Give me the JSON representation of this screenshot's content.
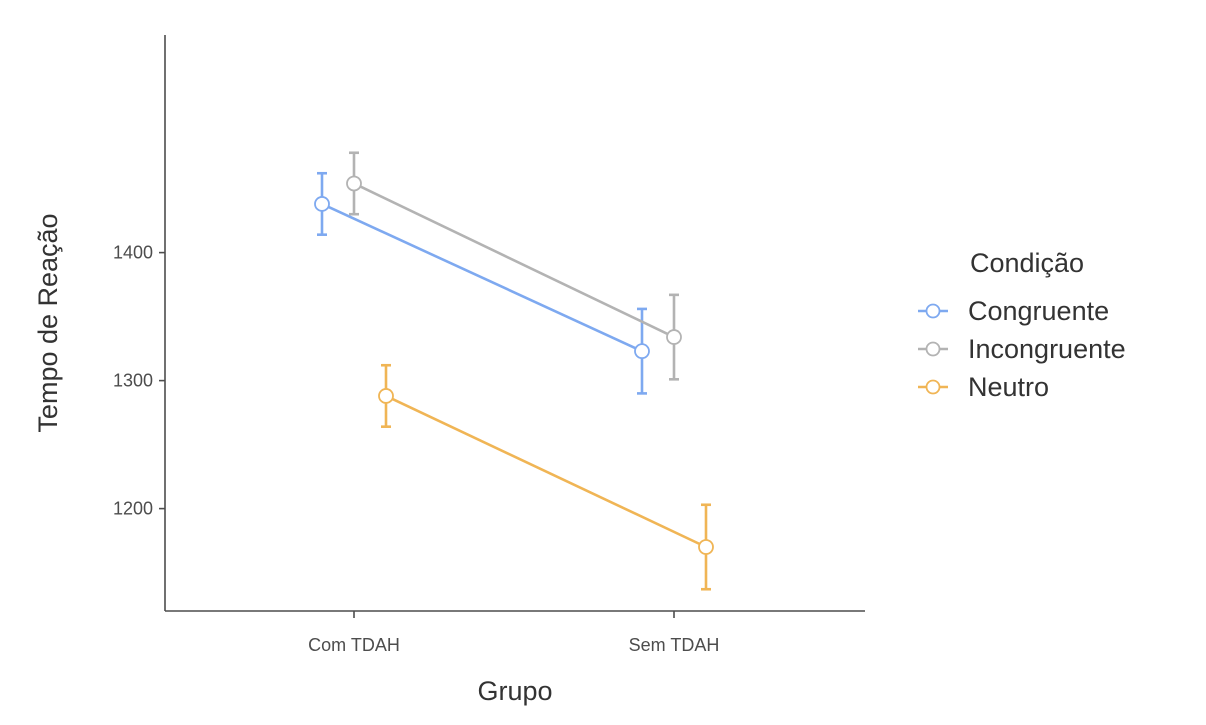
{
  "chart_data": {
    "type": "line",
    "categories": [
      "Com TDAH",
      "Sem TDAH"
    ],
    "xlabel": "Grupo",
    "ylabel": "Tempo de Reação",
    "yticks": [
      1200,
      1300,
      1400
    ],
    "ylim": [
      1120,
      1570
    ],
    "grid": false,
    "legend": {
      "title": "Condição",
      "position": "right"
    },
    "series": [
      {
        "name": "Congruente",
        "color": "#7ea9f0",
        "values": [
          1438,
          1323
        ],
        "ci_lower": [
          1414,
          1290
        ],
        "ci_upper": [
          1462,
          1356
        ]
      },
      {
        "name": "Incongruente",
        "color": "#b3b3b3",
        "values": [
          1454,
          1334
        ],
        "ci_lower": [
          1430,
          1301
        ],
        "ci_upper": [
          1478,
          1367
        ]
      },
      {
        "name": "Neutro",
        "color": "#f0b555",
        "values": [
          1288,
          1170
        ],
        "ci_lower": [
          1264,
          1137
        ],
        "ci_upper": [
          1312,
          1203
        ]
      }
    ]
  }
}
